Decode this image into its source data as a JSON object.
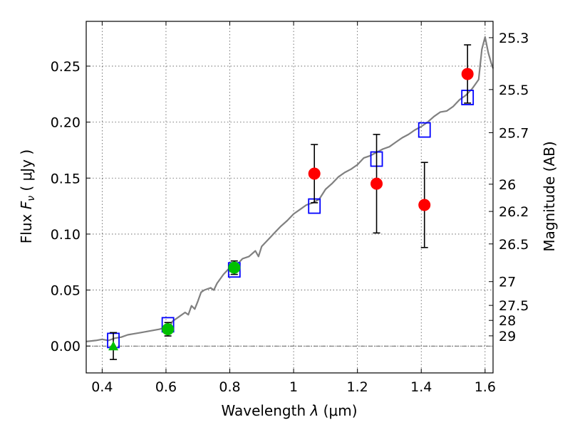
{
  "chart_data": {
    "type": "scatter",
    "xlabel": "Wavelength  λ (μm)",
    "ylabel": "Flux  Fν  ( μJy )",
    "ylabel_parts": {
      "prefix": "Flux  ",
      "symbol": "F",
      "subscript": "ν",
      "unit": "  ( μJy )"
    },
    "xlabel_parts": {
      "prefix": "Wavelength  ",
      "symbol": "λ",
      "unit": " (μm)"
    },
    "y2label": "Magnitude (AB)",
    "xlim": [
      0.35,
      1.625
    ],
    "ylim": [
      -0.024,
      0.29
    ],
    "grid": true,
    "x_ticks": [
      {
        "value": 0.4,
        "label": "0.4"
      },
      {
        "value": 0.6,
        "label": "0.6"
      },
      {
        "value": 0.8,
        "label": "0.8"
      },
      {
        "value": 1.0,
        "label": "1"
      },
      {
        "value": 1.2,
        "label": "1.2"
      },
      {
        "value": 1.4,
        "label": "1.4"
      },
      {
        "value": 1.6,
        "label": "1.6"
      }
    ],
    "y_ticks": [
      {
        "value": 0.0,
        "label": "0.00"
      },
      {
        "value": 0.05,
        "label": "0.05"
      },
      {
        "value": 0.1,
        "label": "0.10"
      },
      {
        "value": 0.15,
        "label": "0.15"
      },
      {
        "value": 0.2,
        "label": "0.20"
      },
      {
        "value": 0.25,
        "label": "0.25"
      }
    ],
    "mag_ticks": [
      {
        "mag": 25.3,
        "label": "25.3"
      },
      {
        "mag": 25.5,
        "label": "25.5"
      },
      {
        "mag": 25.7,
        "label": "25.7"
      },
      {
        "mag": 26.0,
        "label": "26"
      },
      {
        "mag": 26.2,
        "label": "26.2"
      },
      {
        "mag": 26.5,
        "label": "26.5"
      },
      {
        "mag": 27.0,
        "label": "27"
      },
      {
        "mag": 27.5,
        "label": "27.5"
      },
      {
        "mag": 28.0,
        "label": "28"
      },
      {
        "mag": 29.0,
        "label": "29"
      }
    ],
    "series": [
      {
        "name": "model-spectrum",
        "type": "line",
        "color": "#808080",
        "points": [
          [
            0.35,
            0.004
          ],
          [
            0.38,
            0.005
          ],
          [
            0.4,
            0.006
          ],
          [
            0.42,
            0.005
          ],
          [
            0.44,
            0.007
          ],
          [
            0.46,
            0.008
          ],
          [
            0.48,
            0.01
          ],
          [
            0.5,
            0.011
          ],
          [
            0.52,
            0.012
          ],
          [
            0.54,
            0.013
          ],
          [
            0.56,
            0.014
          ],
          [
            0.58,
            0.015
          ],
          [
            0.6,
            0.017
          ],
          [
            0.61,
            0.016
          ],
          [
            0.62,
            0.022
          ],
          [
            0.64,
            0.026
          ],
          [
            0.66,
            0.03
          ],
          [
            0.67,
            0.028
          ],
          [
            0.68,
            0.036
          ],
          [
            0.69,
            0.033
          ],
          [
            0.7,
            0.04
          ],
          [
            0.71,
            0.048
          ],
          [
            0.72,
            0.05
          ],
          [
            0.74,
            0.052
          ],
          [
            0.75,
            0.05
          ],
          [
            0.76,
            0.056
          ],
          [
            0.78,
            0.064
          ],
          [
            0.8,
            0.07
          ],
          [
            0.82,
            0.072
          ],
          [
            0.84,
            0.078
          ],
          [
            0.86,
            0.08
          ],
          [
            0.88,
            0.085
          ],
          [
            0.89,
            0.08
          ],
          [
            0.9,
            0.089
          ],
          [
            0.92,
            0.095
          ],
          [
            0.94,
            0.101
          ],
          [
            0.96,
            0.107
          ],
          [
            0.98,
            0.112
          ],
          [
            1.0,
            0.118
          ],
          [
            1.02,
            0.122
          ],
          [
            1.04,
            0.126
          ],
          [
            1.06,
            0.128
          ],
          [
            1.08,
            0.131
          ],
          [
            1.1,
            0.14
          ],
          [
            1.12,
            0.145
          ],
          [
            1.14,
            0.151
          ],
          [
            1.16,
            0.155
          ],
          [
            1.18,
            0.158
          ],
          [
            1.2,
            0.162
          ],
          [
            1.22,
            0.168
          ],
          [
            1.24,
            0.17
          ],
          [
            1.26,
            0.173
          ],
          [
            1.28,
            0.176
          ],
          [
            1.3,
            0.178
          ],
          [
            1.32,
            0.182
          ],
          [
            1.34,
            0.186
          ],
          [
            1.36,
            0.189
          ],
          [
            1.38,
            0.193
          ],
          [
            1.4,
            0.196
          ],
          [
            1.42,
            0.2
          ],
          [
            1.44,
            0.205
          ],
          [
            1.46,
            0.209
          ],
          [
            1.48,
            0.21
          ],
          [
            1.5,
            0.214
          ],
          [
            1.52,
            0.22
          ],
          [
            1.54,
            0.224
          ],
          [
            1.56,
            0.23
          ],
          [
            1.58,
            0.238
          ],
          [
            1.59,
            0.265
          ],
          [
            1.6,
            0.276
          ],
          [
            1.61,
            0.262
          ],
          [
            1.62,
            0.252
          ],
          [
            1.625,
            0.248
          ]
        ]
      },
      {
        "name": "model-photometry",
        "type": "square-marker",
        "color": "#0000ff",
        "points": [
          [
            0.435,
            0.005
          ],
          [
            0.606,
            0.019
          ],
          [
            0.814,
            0.068
          ],
          [
            1.065,
            0.125
          ],
          [
            1.26,
            0.167
          ],
          [
            1.41,
            0.193
          ],
          [
            1.545,
            0.222
          ]
        ]
      },
      {
        "name": "nir-observed-flux",
        "type": "circle-marker",
        "color": "#ff0000",
        "points": [
          {
            "x": 1.065,
            "y": 0.154,
            "err": 0.026
          },
          {
            "x": 1.26,
            "y": 0.145,
            "err": 0.044
          },
          {
            "x": 1.41,
            "y": 0.126,
            "err": 0.038
          },
          {
            "x": 1.545,
            "y": 0.243,
            "err": 0.026
          }
        ]
      },
      {
        "name": "optical-observed-flux",
        "type": "circle-marker",
        "color": "#00c000",
        "points": [
          {
            "x": 0.606,
            "y": 0.015,
            "err": 0.006
          },
          {
            "x": 0.814,
            "y": 0.07,
            "err": 0.006
          }
        ]
      },
      {
        "name": "upper-limit",
        "type": "triangle-marker",
        "color": "#00c000",
        "points": [
          {
            "x": 0.435,
            "y": 0.0,
            "err": 0.012
          }
        ]
      }
    ]
  }
}
